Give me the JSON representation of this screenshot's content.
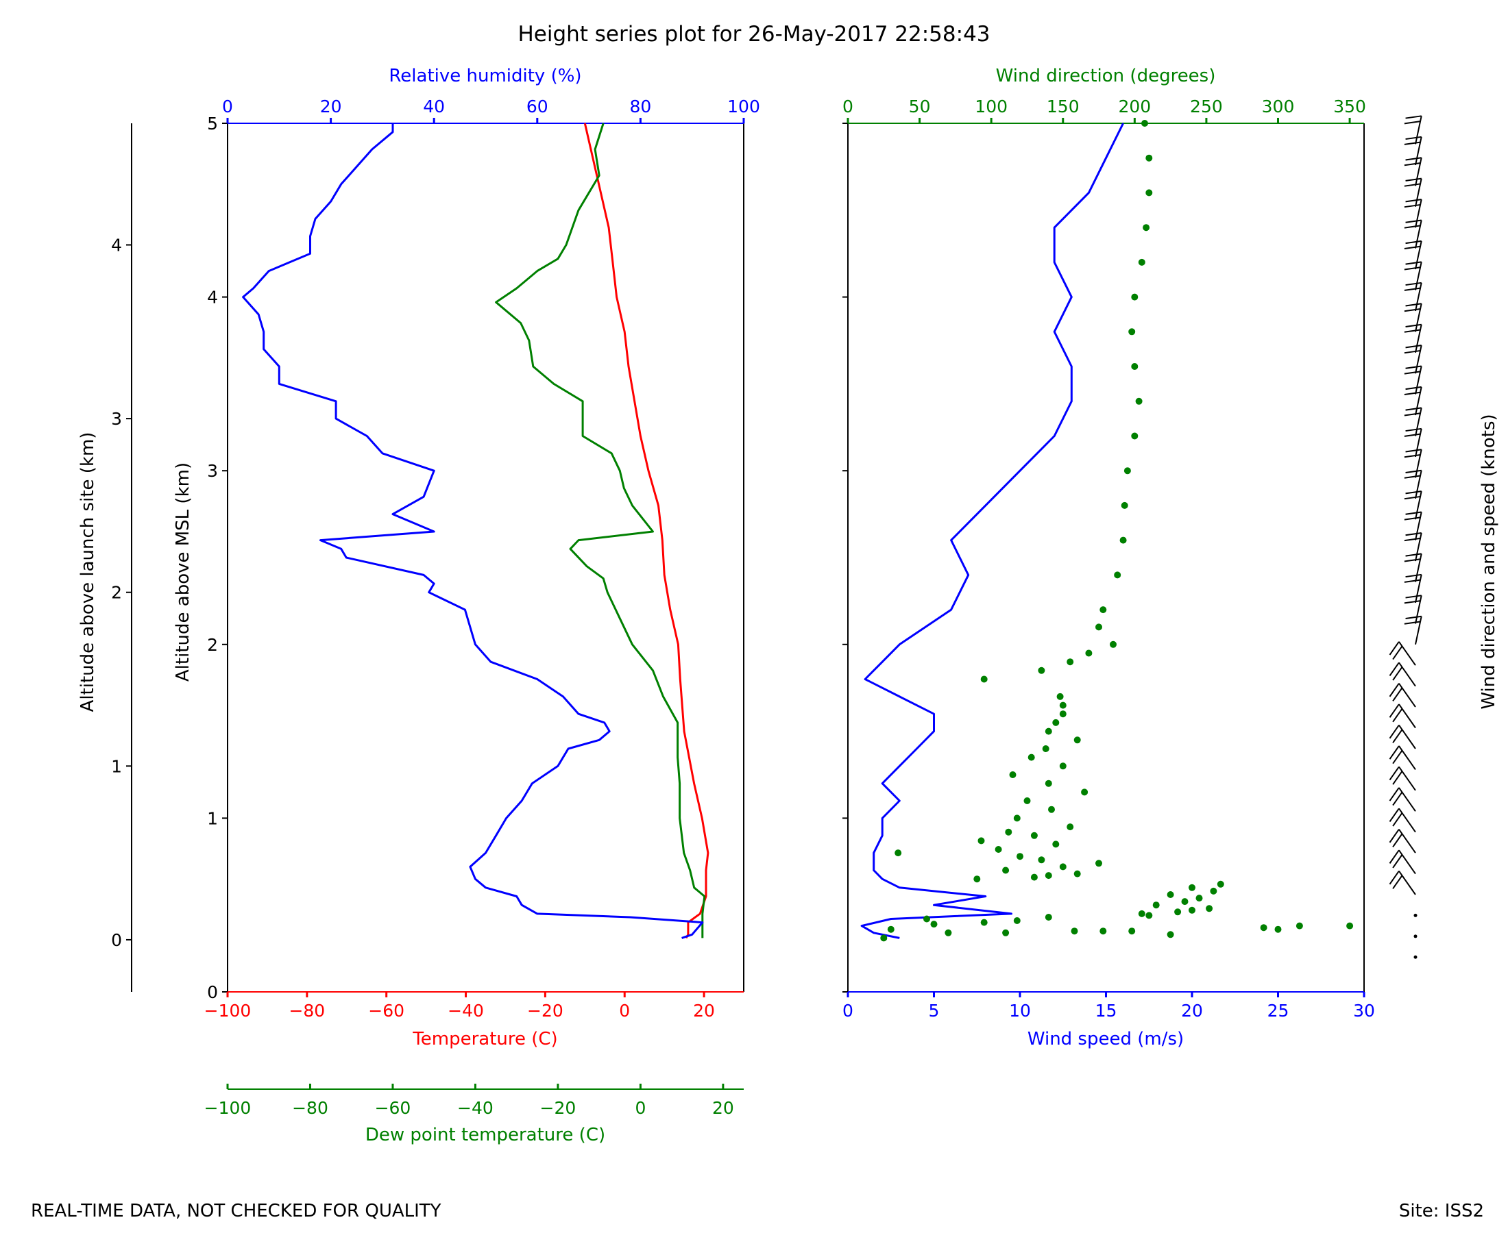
{
  "title": "Height series plot for 26-May-2017 22:58:43",
  "footer_left": "REAL-TIME DATA, NOT CHECKED FOR QUALITY",
  "footer_right": "Site: ISS2",
  "colors": {
    "temperature": "#ff0000",
    "dewpoint": "#008000",
    "rh": "#0000ff",
    "wind_speed": "#0000ff",
    "wind_dir": "#008000",
    "barbs": "#000000"
  },
  "chart_data": [
    {
      "type": "line",
      "panel": "thermodynamic",
      "ylabel_msl": "Altitude above MSL (km)",
      "ylabel_launch": "Altitude above launch site (km)",
      "ylim_msl": [
        0,
        5
      ],
      "yticks_msl": [
        "0",
        "1",
        "2",
        "3",
        "4",
        "5"
      ],
      "ylim_launch": [
        -0.3,
        4.7
      ],
      "yticks_launch": [
        "0",
        "1",
        "2",
        "3",
        "4"
      ],
      "axes": {
        "temperature": {
          "label": "Temperature (C)",
          "lim": [
            -100,
            30
          ],
          "ticks": [
            "−100",
            "−80",
            "−60",
            "−40",
            "−20",
            "0",
            "20"
          ]
        },
        "dewpoint": {
          "label": "Dew point temperature (C)",
          "lim": [
            -100,
            25
          ],
          "ticks": [
            "−100",
            "−80",
            "−60",
            "−40",
            "−20",
            "0",
            "20"
          ]
        },
        "rh": {
          "label": "Relative humidity (%)",
          "lim": [
            0,
            100
          ],
          "ticks": [
            "0",
            "20",
            "40",
            "60",
            "80",
            "100"
          ]
        }
      },
      "series": [
        {
          "axis": "temperature",
          "points": [
            [
              0.31,
              15.5
            ],
            [
              0.33,
              16
            ],
            [
              0.4,
              16
            ],
            [
              0.45,
              19
            ],
            [
              0.55,
              20.5
            ],
            [
              0.7,
              20.5
            ],
            [
              0.8,
              21
            ],
            [
              1.0,
              19.5
            ],
            [
              1.2,
              17.5
            ],
            [
              1.5,
              15
            ],
            [
              1.8,
              14
            ],
            [
              2.0,
              13.5
            ],
            [
              2.2,
              11.5
            ],
            [
              2.4,
              10
            ],
            [
              2.6,
              9.5
            ],
            [
              2.8,
              8.5
            ],
            [
              3.0,
              6
            ],
            [
              3.2,
              4
            ],
            [
              3.4,
              2.5
            ],
            [
              3.6,
              1
            ],
            [
              3.8,
              0
            ],
            [
              4.0,
              -2
            ],
            [
              4.2,
              -3
            ],
            [
              4.4,
              -4
            ],
            [
              4.6,
              -6
            ],
            [
              4.8,
              -8
            ],
            [
              5.0,
              -10
            ]
          ]
        },
        {
          "axis": "dewpoint",
          "points": [
            [
              0.31,
              15
            ],
            [
              0.4,
              15
            ],
            [
              0.45,
              15
            ],
            [
              0.55,
              15.5
            ],
            [
              0.6,
              13
            ],
            [
              0.7,
              12
            ],
            [
              0.8,
              10.5
            ],
            [
              1.0,
              9.5
            ],
            [
              1.2,
              9.5
            ],
            [
              1.35,
              9
            ],
            [
              1.55,
              9
            ],
            [
              1.7,
              5.5
            ],
            [
              1.85,
              3
            ],
            [
              2.0,
              -2
            ],
            [
              2.15,
              -5
            ],
            [
              2.3,
              -8
            ],
            [
              2.38,
              -9
            ],
            [
              2.45,
              -13
            ],
            [
              2.55,
              -17
            ],
            [
              2.6,
              -15
            ],
            [
              2.65,
              3
            ],
            [
              2.8,
              -2
            ],
            [
              2.9,
              -4
            ],
            [
              3.0,
              -5
            ],
            [
              3.1,
              -7
            ],
            [
              3.2,
              -14
            ],
            [
              3.4,
              -14
            ],
            [
              3.5,
              -21
            ],
            [
              3.6,
              -26
            ],
            [
              3.75,
              -27
            ],
            [
              3.85,
              -29
            ],
            [
              3.97,
              -35
            ],
            [
              4.05,
              -30
            ],
            [
              4.15,
              -25
            ],
            [
              4.22,
              -20
            ],
            [
              4.3,
              -18
            ],
            [
              4.5,
              -15
            ],
            [
              4.7,
              -10
            ],
            [
              4.85,
              -11
            ],
            [
              5.0,
              -9
            ]
          ]
        },
        {
          "axis": "rh",
          "points": [
            [
              0.31,
              88
            ],
            [
              0.33,
              90
            ],
            [
              0.4,
              92
            ],
            [
              0.43,
              78
            ],
            [
              0.45,
              60
            ],
            [
              0.5,
              57
            ],
            [
              0.55,
              56
            ],
            [
              0.6,
              50
            ],
            [
              0.65,
              48
            ],
            [
              0.72,
              47
            ],
            [
              0.8,
              50
            ],
            [
              0.9,
              52
            ],
            [
              1.0,
              54
            ],
            [
              1.1,
              57
            ],
            [
              1.2,
              59
            ],
            [
              1.3,
              64
            ],
            [
              1.4,
              66
            ],
            [
              1.45,
              72
            ],
            [
              1.5,
              74
            ],
            [
              1.55,
              73
            ],
            [
              1.6,
              68
            ],
            [
              1.7,
              65
            ],
            [
              1.8,
              60
            ],
            [
              1.9,
              51
            ],
            [
              2.0,
              48
            ],
            [
              2.2,
              46
            ],
            [
              2.3,
              39
            ],
            [
              2.35,
              40
            ],
            [
              2.4,
              38
            ],
            [
              2.5,
              23
            ],
            [
              2.55,
              22
            ],
            [
              2.6,
              18
            ],
            [
              2.65,
              40
            ],
            [
              2.75,
              32
            ],
            [
              2.85,
              38
            ],
            [
              3.0,
              40
            ],
            [
              3.1,
              30
            ],
            [
              3.2,
              27
            ],
            [
              3.3,
              21
            ],
            [
              3.4,
              21
            ],
            [
              3.5,
              10
            ],
            [
              3.6,
              10
            ],
            [
              3.7,
              7
            ],
            [
              3.8,
              7
            ],
            [
              3.9,
              6
            ],
            [
              4.0,
              3
            ],
            [
              4.05,
              5
            ],
            [
              4.15,
              8
            ],
            [
              4.25,
              16
            ],
            [
              4.35,
              16
            ],
            [
              4.45,
              17
            ],
            [
              4.55,
              20
            ],
            [
              4.65,
              22
            ],
            [
              4.75,
              25
            ],
            [
              4.85,
              28
            ],
            [
              4.95,
              32
            ],
            [
              5.0,
              32
            ]
          ]
        }
      ]
    },
    {
      "type": "scatter",
      "panel": "wind",
      "ylim_msl": [
        0,
        5
      ],
      "axes": {
        "wind_speed": {
          "label": "Wind speed (m/s)",
          "lim": [
            0,
            30
          ],
          "ticks": [
            "0",
            "5",
            "10",
            "15",
            "20",
            "25",
            "30"
          ]
        },
        "wind_dir": {
          "label": "Wind direction (degrees)",
          "lim": [
            0,
            360
          ],
          "ticks": [
            "0",
            "50",
            "100",
            "150",
            "200",
            "250",
            "300",
            "350"
          ]
        }
      },
      "series": [
        {
          "axis": "wind_speed",
          "style": "line",
          "points": [
            [
              0.31,
              3.0
            ],
            [
              0.34,
              1.5
            ],
            [
              0.38,
              0.8
            ],
            [
              0.42,
              2.5
            ],
            [
              0.45,
              9.5
            ],
            [
              0.5,
              5
            ],
            [
              0.55,
              8
            ],
            [
              0.6,
              3
            ],
            [
              0.65,
              2
            ],
            [
              0.7,
              1.5
            ],
            [
              0.8,
              1.5
            ],
            [
              0.9,
              2
            ],
            [
              1.0,
              2
            ],
            [
              1.1,
              3
            ],
            [
              1.2,
              2
            ],
            [
              1.3,
              3
            ],
            [
              1.4,
              4
            ],
            [
              1.5,
              5
            ],
            [
              1.6,
              5
            ],
            [
              1.7,
              3
            ],
            [
              1.8,
              1
            ],
            [
              1.9,
              2
            ],
            [
              2.0,
              3
            ],
            [
              2.2,
              6
            ],
            [
              2.4,
              7
            ],
            [
              2.6,
              6
            ],
            [
              2.8,
              8
            ],
            [
              3.0,
              10
            ],
            [
              3.2,
              12
            ],
            [
              3.4,
              13
            ],
            [
              3.6,
              13
            ],
            [
              3.8,
              12
            ],
            [
              4.0,
              13
            ],
            [
              4.2,
              12
            ],
            [
              4.4,
              12
            ],
            [
              4.6,
              14
            ],
            [
              4.8,
              15
            ],
            [
              5.0,
              16
            ]
          ]
        },
        {
          "axis": "wind_dir",
          "style": "points",
          "points": [
            [
              0.31,
              25
            ],
            [
              0.33,
              225
            ],
            [
              0.34,
              70
            ],
            [
              0.34,
              110
            ],
            [
              0.35,
              158
            ],
            [
              0.35,
              178
            ],
            [
              0.35,
              198
            ],
            [
              0.36,
              30
            ],
            [
              0.36,
              300
            ],
            [
              0.37,
              290
            ],
            [
              0.38,
              315
            ],
            [
              0.38,
              350
            ],
            [
              0.39,
              60
            ],
            [
              0.4,
              95
            ],
            [
              0.41,
              118
            ],
            [
              0.42,
              55
            ],
            [
              0.43,
              140
            ],
            [
              0.44,
              210
            ],
            [
              0.45,
              205
            ],
            [
              0.46,
              230
            ],
            [
              0.47,
              240
            ],
            [
              0.48,
              252
            ],
            [
              0.5,
              215
            ],
            [
              0.52,
              235
            ],
            [
              0.54,
              245
            ],
            [
              0.56,
              225
            ],
            [
              0.58,
              255
            ],
            [
              0.6,
              240
            ],
            [
              0.62,
              260
            ],
            [
              0.65,
              90
            ],
            [
              0.66,
              130
            ],
            [
              0.67,
              140
            ],
            [
              0.68,
              160
            ],
            [
              0.7,
              110
            ],
            [
              0.72,
              150
            ],
            [
              0.74,
              175
            ],
            [
              0.76,
              135
            ],
            [
              0.78,
              120
            ],
            [
              0.8,
              35
            ],
            [
              0.82,
              105
            ],
            [
              0.85,
              145
            ],
            [
              0.87,
              93
            ],
            [
              0.9,
              130
            ],
            [
              0.92,
              112
            ],
            [
              0.95,
              155
            ],
            [
              1.0,
              118
            ],
            [
              1.05,
              142
            ],
            [
              1.1,
              125
            ],
            [
              1.15,
              165
            ],
            [
              1.2,
              140
            ],
            [
              1.25,
              115
            ],
            [
              1.3,
              150
            ],
            [
              1.35,
              128
            ],
            [
              1.4,
              138
            ],
            [
              1.45,
              160
            ],
            [
              1.5,
              140
            ],
            [
              1.55,
              145
            ],
            [
              1.6,
              150
            ],
            [
              1.65,
              150
            ],
            [
              1.7,
              148
            ],
            [
              1.8,
              95
            ],
            [
              1.85,
              135
            ],
            [
              1.9,
              155
            ],
            [
              1.95,
              168
            ],
            [
              2.0,
              185
            ],
            [
              2.1,
              175
            ],
            [
              2.2,
              178
            ],
            [
              2.4,
              188
            ],
            [
              2.6,
              192
            ],
            [
              2.8,
              193
            ],
            [
              3.0,
              195
            ],
            [
              3.2,
              200
            ],
            [
              3.4,
              203
            ],
            [
              3.6,
              200
            ],
            [
              3.8,
              198
            ],
            [
              4.0,
              200
            ],
            [
              4.2,
              205
            ],
            [
              4.4,
              208
            ],
            [
              4.6,
              210
            ],
            [
              4.8,
              210
            ],
            [
              5.0,
              207
            ]
          ]
        }
      ]
    },
    {
      "type": "barbs",
      "panel": "wind-barbs",
      "ylabel": "Wind direction and speed (knots)"
    }
  ]
}
